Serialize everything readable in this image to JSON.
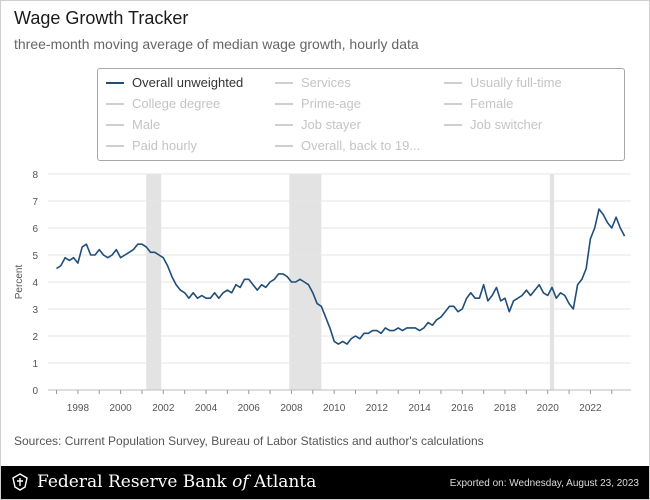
{
  "header": {
    "title": "Wage Growth Tracker",
    "subtitle": "three-month moving average of median wage growth, hourly data"
  },
  "legend": [
    {
      "label": "Overall unweighted",
      "active": true
    },
    {
      "label": "Services",
      "active": false
    },
    {
      "label": "Usually full-time",
      "active": false
    },
    {
      "label": "College degree",
      "active": false
    },
    {
      "label": "Prime-age",
      "active": false
    },
    {
      "label": "Female",
      "active": false
    },
    {
      "label": "Male",
      "active": false
    },
    {
      "label": "Job stayer",
      "active": false
    },
    {
      "label": "Job switcher",
      "active": false
    },
    {
      "label": "Paid hourly",
      "active": false
    },
    {
      "label": "Overall, back to 19...",
      "active": false
    }
  ],
  "footer": {
    "source": "Sources: Current Population Survey, Bureau of Labor Statistics and author's calculations",
    "org_name_prefix": "Federal Reserve Bank ",
    "org_name_of": "of",
    "org_name_suffix": " Atlanta",
    "exported": "Exported on: Wednesday, August 23, 2023"
  },
  "colors": {
    "line": "#1f4e79",
    "recession": "#e3e3e3",
    "grid": "#e6e6e6"
  },
  "chart_data": {
    "type": "line",
    "title": "Wage Growth Tracker",
    "ylabel": "Percent",
    "xlabel": "",
    "xlim": [
      1996.6,
      2023.9
    ],
    "ylim": [
      0,
      8
    ],
    "x_ticks": [
      1998,
      2000,
      2002,
      2004,
      2006,
      2008,
      2010,
      2012,
      2014,
      2016,
      2018,
      2020,
      2022
    ],
    "y_ticks": [
      0,
      1,
      2,
      3,
      4,
      5,
      6,
      7,
      8
    ],
    "grid": true,
    "shaded_periods": [
      {
        "start": 2001.2,
        "end": 2001.9
      },
      {
        "start": 2007.9,
        "end": 2009.4
      },
      {
        "start": 2020.1,
        "end": 2020.3
      }
    ],
    "series": [
      {
        "name": "Overall unweighted",
        "x": [
          1997.0,
          1997.2,
          1997.4,
          1997.6,
          1997.8,
          1998.0,
          1998.2,
          1998.4,
          1998.6,
          1998.8,
          1999.0,
          1999.2,
          1999.4,
          1999.6,
          1999.8,
          2000.0,
          2000.2,
          2000.4,
          2000.6,
          2000.8,
          2001.0,
          2001.2,
          2001.4,
          2001.6,
          2001.8,
          2002.0,
          2002.2,
          2002.4,
          2002.6,
          2002.8,
          2003.0,
          2003.2,
          2003.4,
          2003.6,
          2003.8,
          2004.0,
          2004.2,
          2004.4,
          2004.6,
          2004.8,
          2005.0,
          2005.2,
          2005.4,
          2005.6,
          2005.8,
          2006.0,
          2006.2,
          2006.4,
          2006.6,
          2006.8,
          2007.0,
          2007.2,
          2007.4,
          2007.6,
          2007.8,
          2008.0,
          2008.2,
          2008.4,
          2008.6,
          2008.8,
          2009.0,
          2009.2,
          2009.4,
          2009.6,
          2009.8,
          2010.0,
          2010.2,
          2010.4,
          2010.6,
          2010.8,
          2011.0,
          2011.2,
          2011.4,
          2011.6,
          2011.8,
          2012.0,
          2012.2,
          2012.4,
          2012.6,
          2012.8,
          2013.0,
          2013.2,
          2013.4,
          2013.6,
          2013.8,
          2014.0,
          2014.2,
          2014.4,
          2014.6,
          2014.8,
          2015.0,
          2015.2,
          2015.4,
          2015.6,
          2015.8,
          2016.0,
          2016.2,
          2016.4,
          2016.6,
          2016.8,
          2017.0,
          2017.2,
          2017.4,
          2017.6,
          2017.8,
          2018.0,
          2018.2,
          2018.4,
          2018.6,
          2018.8,
          2019.0,
          2019.2,
          2019.4,
          2019.6,
          2019.8,
          2020.0,
          2020.2,
          2020.4,
          2020.6,
          2020.8,
          2021.0,
          2021.2,
          2021.4,
          2021.6,
          2021.8,
          2022.0,
          2022.2,
          2022.4,
          2022.6,
          2022.8,
          2023.0,
          2023.2,
          2023.4,
          2023.6
        ],
        "values": [
          4.5,
          4.6,
          4.9,
          4.8,
          4.9,
          4.7,
          5.3,
          5.4,
          5.0,
          5.0,
          5.2,
          5.0,
          4.9,
          5.0,
          5.2,
          4.9,
          5.0,
          5.1,
          5.2,
          5.4,
          5.4,
          5.3,
          5.1,
          5.1,
          5.0,
          4.9,
          4.6,
          4.2,
          3.9,
          3.7,
          3.6,
          3.4,
          3.6,
          3.4,
          3.5,
          3.4,
          3.4,
          3.6,
          3.4,
          3.6,
          3.7,
          3.6,
          3.9,
          3.8,
          4.1,
          4.1,
          3.9,
          3.7,
          3.9,
          3.8,
          4.0,
          4.1,
          4.3,
          4.3,
          4.2,
          4.0,
          4.0,
          4.1,
          4.0,
          3.9,
          3.6,
          3.2,
          3.1,
          2.7,
          2.3,
          1.8,
          1.7,
          1.8,
          1.7,
          1.9,
          2.0,
          1.9,
          2.1,
          2.1,
          2.2,
          2.2,
          2.1,
          2.3,
          2.2,
          2.2,
          2.3,
          2.2,
          2.3,
          2.3,
          2.3,
          2.2,
          2.3,
          2.5,
          2.4,
          2.6,
          2.7,
          2.9,
          3.1,
          3.1,
          2.9,
          3.0,
          3.4,
          3.6,
          3.4,
          3.4,
          3.9,
          3.3,
          3.5,
          3.8,
          3.3,
          3.4,
          2.9,
          3.3,
          3.4,
          3.5,
          3.7,
          3.5,
          3.7,
          3.9,
          3.6,
          3.5,
          3.8,
          3.4,
          3.6,
          3.5,
          3.2,
          3.0,
          3.9,
          4.1,
          4.5,
          5.6,
          6.0,
          6.7,
          6.5,
          6.2,
          6.0,
          6.4,
          6.0,
          5.7
        ]
      }
    ]
  }
}
